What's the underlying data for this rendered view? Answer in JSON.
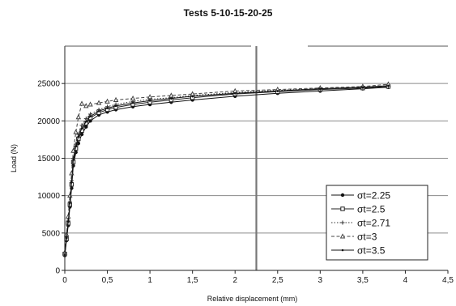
{
  "chart_data": {
    "type": "line",
    "title": "Tests 5-10-15-20-25",
    "xlabel": "Relative displacement (mm)",
    "ylabel": "Load (N)",
    "xlim": [
      0,
      4.5
    ],
    "ylim": [
      0,
      30000
    ],
    "x_ticks": [
      0,
      0.5,
      1,
      1.5,
      2,
      2.5,
      3,
      3.5,
      4,
      4.5
    ],
    "x_tick_labels": [
      "0",
      "0,5",
      "1",
      "1,5",
      "2",
      "2,5",
      "3",
      "3,5",
      "4",
      "4,5"
    ],
    "y_ticks": [
      0,
      5000,
      10000,
      15000,
      20000,
      25000
    ],
    "y_tick_labels": [
      "0",
      "5000",
      "10000",
      "15000",
      "20000",
      "25000"
    ],
    "grid": "horizontal",
    "legend_position": "bottom-right",
    "vertical_marker_x": 2.25,
    "series": [
      {
        "name": "σt=2.25",
        "marker": "filled-circle",
        "dash": "solid",
        "x": [
          0,
          0.02,
          0.04,
          0.06,
          0.08,
          0.1,
          0.13,
          0.16,
          0.2,
          0.25,
          0.3,
          0.4,
          0.5,
          0.6,
          0.8,
          1.0,
          1.25,
          1.5,
          2.0,
          2.5,
          3.0,
          3.5,
          3.8
        ],
        "y": [
          2000,
          4000,
          6000,
          8500,
          11000,
          14000,
          15800,
          17000,
          18200,
          19200,
          20000,
          20800,
          21200,
          21500,
          21900,
          22200,
          22500,
          22800,
          23300,
          23700,
          24000,
          24300,
          24500
        ]
      },
      {
        "name": "σt=2.5",
        "marker": "open-square",
        "dash": "solid",
        "x": [
          0,
          0.02,
          0.04,
          0.06,
          0.08,
          0.1,
          0.13,
          0.16,
          0.2,
          0.25,
          0.3,
          0.4,
          0.5,
          0.6,
          0.8,
          1.0,
          1.25,
          1.5,
          2.0,
          2.5,
          3.0,
          3.5,
          3.8
        ],
        "y": [
          2200,
          4200,
          6300,
          8800,
          11500,
          14500,
          16300,
          17600,
          18700,
          19700,
          20400,
          21100,
          21500,
          21800,
          22200,
          22500,
          22800,
          23100,
          23600,
          23900,
          24200,
          24400,
          24600
        ]
      },
      {
        "name": "σt=2.71",
        "marker": "cross",
        "dash": "dotted",
        "x": [
          0,
          0.02,
          0.04,
          0.06,
          0.08,
          0.1,
          0.13,
          0.16,
          0.2,
          0.25,
          0.3,
          0.4,
          0.5,
          0.6,
          0.8,
          1.0,
          1.25,
          1.5,
          2.0,
          2.5,
          3.0,
          3.5,
          3.8
        ],
        "y": [
          2300,
          4500,
          6700,
          9200,
          12000,
          15000,
          16900,
          18200,
          19400,
          20300,
          20900,
          21500,
          21900,
          22200,
          22600,
          22900,
          23100,
          23400,
          23800,
          24100,
          24300,
          24500,
          24700
        ]
      },
      {
        "name": "σt=3",
        "marker": "triangle",
        "dash": "dashed",
        "x": [
          0,
          0.02,
          0.04,
          0.06,
          0.08,
          0.1,
          0.13,
          0.16,
          0.2,
          0.25,
          0.3,
          0.4,
          0.5,
          0.6,
          0.8,
          1.0,
          1.25,
          1.5,
          2.0,
          2.5,
          3.0,
          3.5,
          3.8
        ],
        "y": [
          2400,
          4800,
          7200,
          10000,
          13000,
          16000,
          18500,
          20500,
          22300,
          22000,
          22200,
          22400,
          22600,
          22800,
          23000,
          23200,
          23400,
          23600,
          24000,
          24200,
          24400,
          24600,
          24900
        ]
      },
      {
        "name": "σt=3.5",
        "marker": "small-dot",
        "dash": "solid",
        "x": [
          0,
          0.02,
          0.04,
          0.06,
          0.08,
          0.1,
          0.13,
          0.16,
          0.2,
          0.25,
          0.3,
          0.4,
          0.5,
          0.6,
          0.8,
          1.0,
          1.25,
          1.5,
          2.0,
          2.5,
          3.0,
          3.5,
          3.8
        ],
        "y": [
          2100,
          4300,
          6500,
          9000,
          11800,
          14800,
          16600,
          17900,
          19000,
          19900,
          20600,
          21300,
          21700,
          22000,
          22400,
          22700,
          23000,
          23300,
          23700,
          24000,
          24300,
          24500,
          24700
        ]
      }
    ]
  }
}
